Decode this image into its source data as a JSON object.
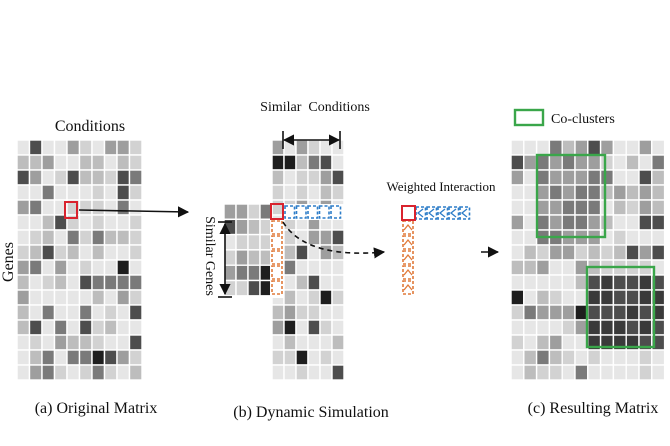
{
  "panels": {
    "a": {
      "title": "Conditions",
      "row_axis_label": "Genes",
      "caption": "(a) Original Matrix"
    },
    "b": {
      "top_label": "Similar  Conditions",
      "side_label": "Similar Genes",
      "caption": "(b) Dynamic Simulation"
    },
    "interaction": {
      "label": "Weighted Interaction"
    },
    "c": {
      "legend_label": "Co-clusters",
      "caption": "(c) Resulting Matrix"
    }
  },
  "colors": {
    "grey_levels": [
      "#e6e6e6",
      "#d2d2d2",
      "#bdbdbd",
      "#9e9e9e",
      "#7a7a7a",
      "#4d4d4d",
      "#1e1e1e"
    ],
    "highlight": "#d9232e",
    "similar_conditions": "#2d7dc8",
    "similar_genes": "#e07a3a",
    "co_cluster": "#3aa64a",
    "arrow": "#111111"
  }
}
